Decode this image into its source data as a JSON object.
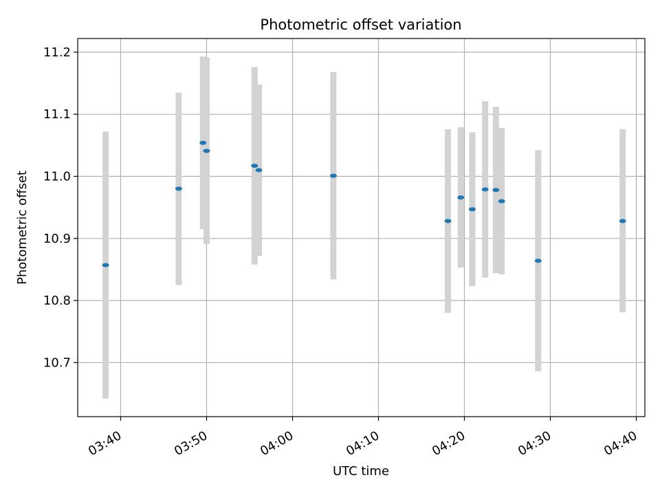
{
  "chart_data": {
    "type": "scatter",
    "title": "Photometric offset variation",
    "xlabel": "UTC time",
    "ylabel": "Photometric offset",
    "xlim": [
      "03:35:00",
      "04:41:00"
    ],
    "ylim": [
      10.613,
      11.222
    ],
    "x_ticks": [
      "03:40",
      "03:50",
      "04:00",
      "04:10",
      "04:20",
      "04:30",
      "04:40"
    ],
    "y_ticks": [
      "10.7",
      "10.8",
      "10.9",
      "11.0",
      "11.1",
      "11.2"
    ],
    "grid": true,
    "series": [
      {
        "marker": "point",
        "errorbar": "vertical",
        "points": [
          {
            "time": "03:38:15",
            "y": 10.857,
            "err_low": 10.642,
            "err_high": 11.072
          },
          {
            "time": "03:46:45",
            "y": 10.98,
            "err_low": 10.825,
            "err_high": 11.135
          },
          {
            "time": "03:49:35",
            "y": 11.054,
            "err_low": 10.915,
            "err_high": 11.193
          },
          {
            "time": "03:50:00",
            "y": 11.041,
            "err_low": 10.891,
            "err_high": 11.191
          },
          {
            "time": "03:55:35",
            "y": 11.017,
            "err_low": 10.858,
            "err_high": 11.176
          },
          {
            "time": "03:56:05",
            "y": 11.01,
            "err_low": 10.872,
            "err_high": 11.148
          },
          {
            "time": "04:04:45",
            "y": 11.001,
            "err_low": 10.834,
            "err_high": 11.168
          },
          {
            "time": "04:18:05",
            "y": 10.928,
            "err_low": 10.78,
            "err_high": 11.076
          },
          {
            "time": "04:19:35",
            "y": 10.966,
            "err_low": 10.853,
            "err_high": 11.079
          },
          {
            "time": "04:20:55",
            "y": 10.947,
            "err_low": 10.823,
            "err_high": 11.071
          },
          {
            "time": "04:22:25",
            "y": 10.979,
            "err_low": 10.837,
            "err_high": 11.121
          },
          {
            "time": "04:23:40",
            "y": 10.978,
            "err_low": 10.844,
            "err_high": 11.112
          },
          {
            "time": "04:24:20",
            "y": 10.96,
            "err_low": 10.842,
            "err_high": 11.078
          },
          {
            "time": "04:28:35",
            "y": 10.864,
            "err_low": 10.686,
            "err_high": 11.042
          },
          {
            "time": "04:38:25",
            "y": 10.928,
            "err_low": 10.781,
            "err_high": 11.076
          }
        ]
      }
    ],
    "colors": {
      "marker": "#1f77b4",
      "errorbar": "#d3d3d3",
      "grid": "#b0b0b0",
      "axes": "#000000"
    }
  }
}
